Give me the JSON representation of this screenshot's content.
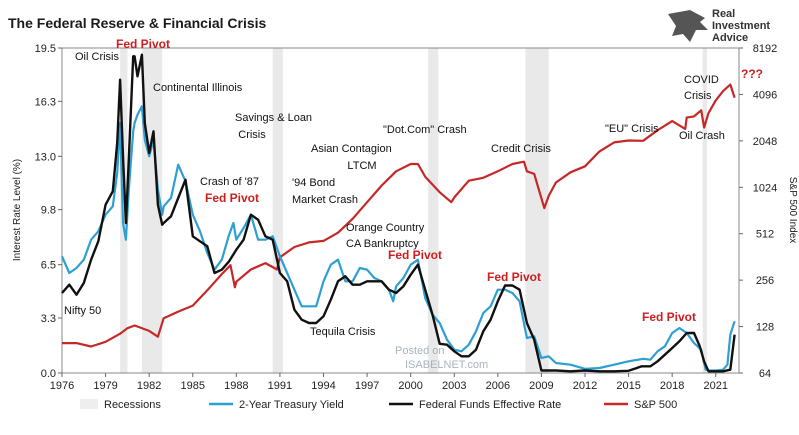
{
  "chart_data": {
    "type": "line",
    "title": "The Federal Reserve & Financial Crisis",
    "ylabel_left": "Interest Rate Level (%)",
    "ylabel_right": "S&P 500 Index",
    "xlim": [
      1976,
      2022.6
    ],
    "ylim_left": [
      0,
      19.5
    ],
    "ylim_right": [
      64,
      8192
    ],
    "right_scale": "log2",
    "x_ticks": [
      "1976",
      "1979",
      "1982",
      "1985",
      "1988",
      "1991",
      "1994",
      "1997",
      "2000",
      "2003",
      "2006",
      "2009",
      "2012",
      "2015",
      "2018",
      "2021"
    ],
    "y_left_ticks": [
      "0.0",
      "3.3",
      "6.5",
      "9.8",
      "13.0",
      "16.3",
      "19.5"
    ],
    "y_right_ticks": [
      "64",
      "128",
      "256",
      "512",
      "1024",
      "2048",
      "4096",
      "8192"
    ],
    "grid": false,
    "legend_position": "bottom",
    "recessions": [
      [
        1980.0,
        1980.5
      ],
      [
        1981.5,
        1982.9
      ],
      [
        1990.5,
        1991.2
      ],
      [
        2001.2,
        2001.9
      ],
      [
        2007.9,
        2009.5
      ],
      [
        2020.1,
        2020.4
      ]
    ],
    "series": [
      {
        "name": "Recessions",
        "color": "#eeeeee",
        "x": [],
        "values": []
      },
      {
        "name": "2-Year Treasury Yield",
        "color": "#2e9fd3",
        "x": [
          1976,
          1976.5,
          1977,
          1977.5,
          1978,
          1978.5,
          1979,
          1979.5,
          1979.8,
          1980,
          1980.2,
          1980.4,
          1980.6,
          1980.9,
          1981,
          1981.2,
          1981.5,
          1981.7,
          1982,
          1982.3,
          1982.6,
          1982.9,
          1983,
          1983.5,
          1984,
          1984.5,
          1985,
          1985.5,
          1986,
          1986.5,
          1987,
          1987.5,
          1987.8,
          1988,
          1988.5,
          1989,
          1989.5,
          1990,
          1990.5,
          1991,
          1991.5,
          1992,
          1992.5,
          1993,
          1993.5,
          1994,
          1994.5,
          1995,
          1995.5,
          1996,
          1996.5,
          1997,
          1997.5,
          1998,
          1998.5,
          1998.8,
          1999,
          1999.5,
          2000,
          2000.5,
          2001,
          2001.5,
          2002,
          2002.5,
          2003,
          2003.5,
          2004,
          2004.5,
          2005,
          2005.5,
          2006,
          2006.5,
          2007,
          2007.5,
          2008,
          2008.5,
          2009,
          2009.5,
          2010,
          2011,
          2012,
          2013,
          2014,
          2015,
          2016,
          2016.5,
          2017,
          2017.5,
          2018,
          2018.5,
          2019,
          2019.5,
          2020,
          2020.3,
          2020.6,
          2021,
          2021.5,
          2021.8,
          2022,
          2022.3
        ],
        "values": [
          7.0,
          6.0,
          6.3,
          6.8,
          8.0,
          8.5,
          9.5,
          10.0,
          12.0,
          15.0,
          9.0,
          8.0,
          11.0,
          14.5,
          15.0,
          15.5,
          16.0,
          14.0,
          13.0,
          14.0,
          11.0,
          9.5,
          10.0,
          10.5,
          12.5,
          11.5,
          9.5,
          8.5,
          7.2,
          6.2,
          6.8,
          8.3,
          9.0,
          8.0,
          8.7,
          9.5,
          8.0,
          8.0,
          8.2,
          7.0,
          6.0,
          5.0,
          4.0,
          4.0,
          4.0,
          5.5,
          6.5,
          6.8,
          5.5,
          5.5,
          6.3,
          6.2,
          5.7,
          5.5,
          5.0,
          4.3,
          5.2,
          5.7,
          6.5,
          6.8,
          4.5,
          3.5,
          3.0,
          2.0,
          1.4,
          1.3,
          1.7,
          2.5,
          3.6,
          4.0,
          5.0,
          5.0,
          4.8,
          4.3,
          2.1,
          2.2,
          0.9,
          1.0,
          0.6,
          0.5,
          0.25,
          0.3,
          0.5,
          0.7,
          0.85,
          0.8,
          1.3,
          1.6,
          2.4,
          2.7,
          2.4,
          1.8,
          1.4,
          0.2,
          0.15,
          0.15,
          0.2,
          0.5,
          2.3,
          3.1
        ]
      },
      {
        "name": "Federal Funds Effective Rate",
        "color": "#111111",
        "x": [
          1976,
          1976.5,
          1977,
          1977.5,
          1978,
          1978.5,
          1979,
          1979.5,
          1979.8,
          1980,
          1980.2,
          1980.4,
          1980.6,
          1980.9,
          1981,
          1981.2,
          1981.5,
          1981.7,
          1982,
          1982.3,
          1982.6,
          1982.9,
          1983,
          1983.5,
          1984,
          1984.5,
          1985,
          1985.5,
          1986,
          1986.5,
          1987,
          1987.5,
          1988,
          1988.5,
          1989,
          1989.5,
          1990,
          1990.5,
          1991,
          1991.5,
          1992,
          1992.5,
          1993,
          1993.5,
          1994,
          1994.5,
          1995,
          1995.5,
          1996,
          1996.5,
          1997,
          1997.5,
          1998,
          1998.5,
          1999,
          1999.5,
          2000,
          2000.5,
          2001,
          2001.5,
          2002,
          2002.5,
          2003,
          2003.5,
          2004,
          2004.5,
          2005,
          2005.5,
          2006,
          2006.5,
          2007,
          2007.5,
          2008,
          2008.5,
          2009,
          2010,
          2011,
          2012,
          2013,
          2014,
          2015,
          2015.9,
          2016.5,
          2017,
          2017.5,
          2018,
          2018.5,
          2019,
          2019.5,
          2019.9,
          2020.2,
          2020.5,
          2021,
          2021.5,
          2022,
          2022.3
        ],
        "values": [
          4.8,
          5.3,
          4.7,
          5.4,
          6.8,
          7.9,
          10.1,
          10.9,
          13.8,
          17.6,
          13.0,
          9.0,
          12.8,
          19.0,
          19.0,
          17.8,
          19.1,
          15.0,
          13.2,
          14.5,
          10.1,
          8.9,
          9.0,
          9.4,
          10.5,
          11.6,
          8.2,
          7.9,
          7.6,
          6.0,
          6.2,
          6.7,
          7.4,
          8.0,
          9.5,
          9.2,
          8.2,
          8.0,
          6.0,
          5.5,
          3.8,
          3.2,
          3.0,
          3.0,
          3.4,
          4.4,
          5.5,
          5.8,
          5.3,
          5.3,
          5.5,
          5.5,
          5.5,
          5.0,
          4.8,
          5.2,
          5.9,
          6.5,
          5.0,
          3.5,
          1.75,
          1.7,
          1.3,
          1.0,
          1.0,
          1.4,
          2.5,
          3.2,
          4.3,
          5.25,
          5.25,
          5.0,
          3.0,
          2.0,
          0.15,
          0.15,
          0.1,
          0.15,
          0.1,
          0.1,
          0.13,
          0.4,
          0.4,
          0.7,
          1.1,
          1.5,
          1.9,
          2.4,
          2.4,
          1.6,
          0.7,
          0.1,
          0.1,
          0.1,
          0.2,
          2.3
        ]
      },
      {
        "name": "S&P 500",
        "color": "#c62828",
        "x": [
          1976,
          1977,
          1978,
          1979,
          1980,
          1980.5,
          1981,
          1982,
          1982.6,
          1983,
          1984,
          1985,
          1986,
          1987,
          1987.6,
          1987.9,
          1988,
          1989,
          1990,
          1990.8,
          1991,
          1992,
          1993,
          1994,
          1995,
          1996,
          1997,
          1998,
          1999,
          2000,
          2000.5,
          2001,
          2002,
          2002.8,
          2003,
          2004,
          2005,
          2006,
          2007,
          2007.8,
          2008,
          2008.5,
          2009.2,
          2009.5,
          2010,
          2011,
          2012,
          2013,
          2014,
          2015,
          2016,
          2017,
          2018,
          2018.9,
          2019,
          2019.5,
          2020,
          2020.2,
          2020.5,
          2021,
          2021.5,
          2022,
          2022.3
        ],
        "values": [
          100,
          100,
          95,
          102,
          115,
          125,
          130,
          120,
          110,
          145,
          160,
          175,
          220,
          280,
          320,
          230,
          250,
          300,
          330,
          300,
          360,
          420,
          450,
          460,
          520,
          640,
          820,
          1050,
          1300,
          1450,
          1450,
          1200,
          950,
          820,
          880,
          1130,
          1180,
          1300,
          1450,
          1500,
          1300,
          1250,
          750,
          900,
          1100,
          1280,
          1400,
          1750,
          2000,
          2060,
          2050,
          2400,
          2750,
          2450,
          2900,
          2950,
          3230,
          2500,
          3100,
          3750,
          4300,
          4750,
          3900
        ]
      }
    ],
    "annotations": [
      {
        "text": "Oil Crisis",
        "color": "black"
      },
      {
        "text": "Fed Pivot",
        "color": "red"
      },
      {
        "text": "Continental Illinois",
        "color": "black"
      },
      {
        "text": "Savings & Loan",
        "color": "black"
      },
      {
        "text": "Crisis",
        "color": "black"
      },
      {
        "text": "Asian Contagion",
        "color": "black"
      },
      {
        "text": "LTCM",
        "color": "black"
      },
      {
        "text": "\"Dot.Com\" Crash",
        "color": "black"
      },
      {
        "text": "Credit Crisis",
        "color": "black"
      },
      {
        "text": "\"EU\" Crisis",
        "color": "black"
      },
      {
        "text": "COVID",
        "color": "black"
      },
      {
        "text": "Crisis",
        "color": "black"
      },
      {
        "text": "???",
        "color": "red"
      },
      {
        "text": "Oil Crash",
        "color": "black"
      },
      {
        "text": "Crash of '87",
        "color": "black"
      },
      {
        "text": "Fed Pivot",
        "color": "red"
      },
      {
        "text": "'94 Bond",
        "color": "black"
      },
      {
        "text": "Market Crash",
        "color": "black"
      },
      {
        "text": "Orange Country",
        "color": "black"
      },
      {
        "text": "CA Bankruptcy",
        "color": "black"
      },
      {
        "text": "Fed Pivot",
        "color": "red"
      },
      {
        "text": "Fed Pivot",
        "color": "red"
      },
      {
        "text": "Fed Pivot",
        "color": "red"
      },
      {
        "text": "Nifty 50",
        "color": "black"
      },
      {
        "text": "Tequila Crisis",
        "color": "black"
      }
    ]
  },
  "logo": {
    "line1": "Real",
    "line2": "Investment",
    "line3": "Advice"
  },
  "watermark": {
    "line1": "Posted on",
    "line2": "ISABELNET.com"
  }
}
